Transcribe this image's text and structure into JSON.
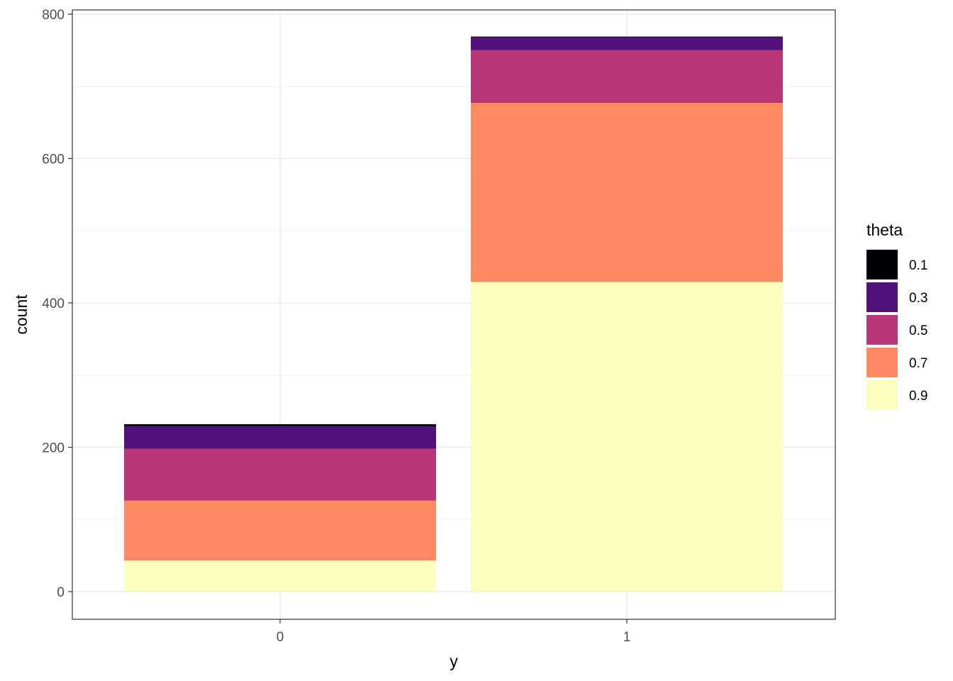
{
  "chart_data": {
    "type": "bar",
    "stacked": true,
    "categories": [
      "0",
      "1"
    ],
    "xlabel": "y",
    "ylabel": "count",
    "ylim": [
      0,
      800
    ],
    "yticks": [
      0,
      200,
      400,
      600,
      800
    ],
    "grid": true,
    "legend": {
      "title": "theta",
      "placement": "right"
    },
    "series": [
      {
        "name": "0.1",
        "color": "#000004",
        "values": [
          3,
          1
        ]
      },
      {
        "name": "0.3",
        "color": "#51127C",
        "values": [
          31,
          18
        ]
      },
      {
        "name": "0.5",
        "color": "#B73779",
        "values": [
          72,
          73
        ]
      },
      {
        "name": "0.7",
        "color": "#FC8961",
        "values": [
          83,
          248
        ]
      },
      {
        "name": "0.9",
        "color": "#FCFDBF",
        "values": [
          43,
          429
        ]
      }
    ]
  }
}
